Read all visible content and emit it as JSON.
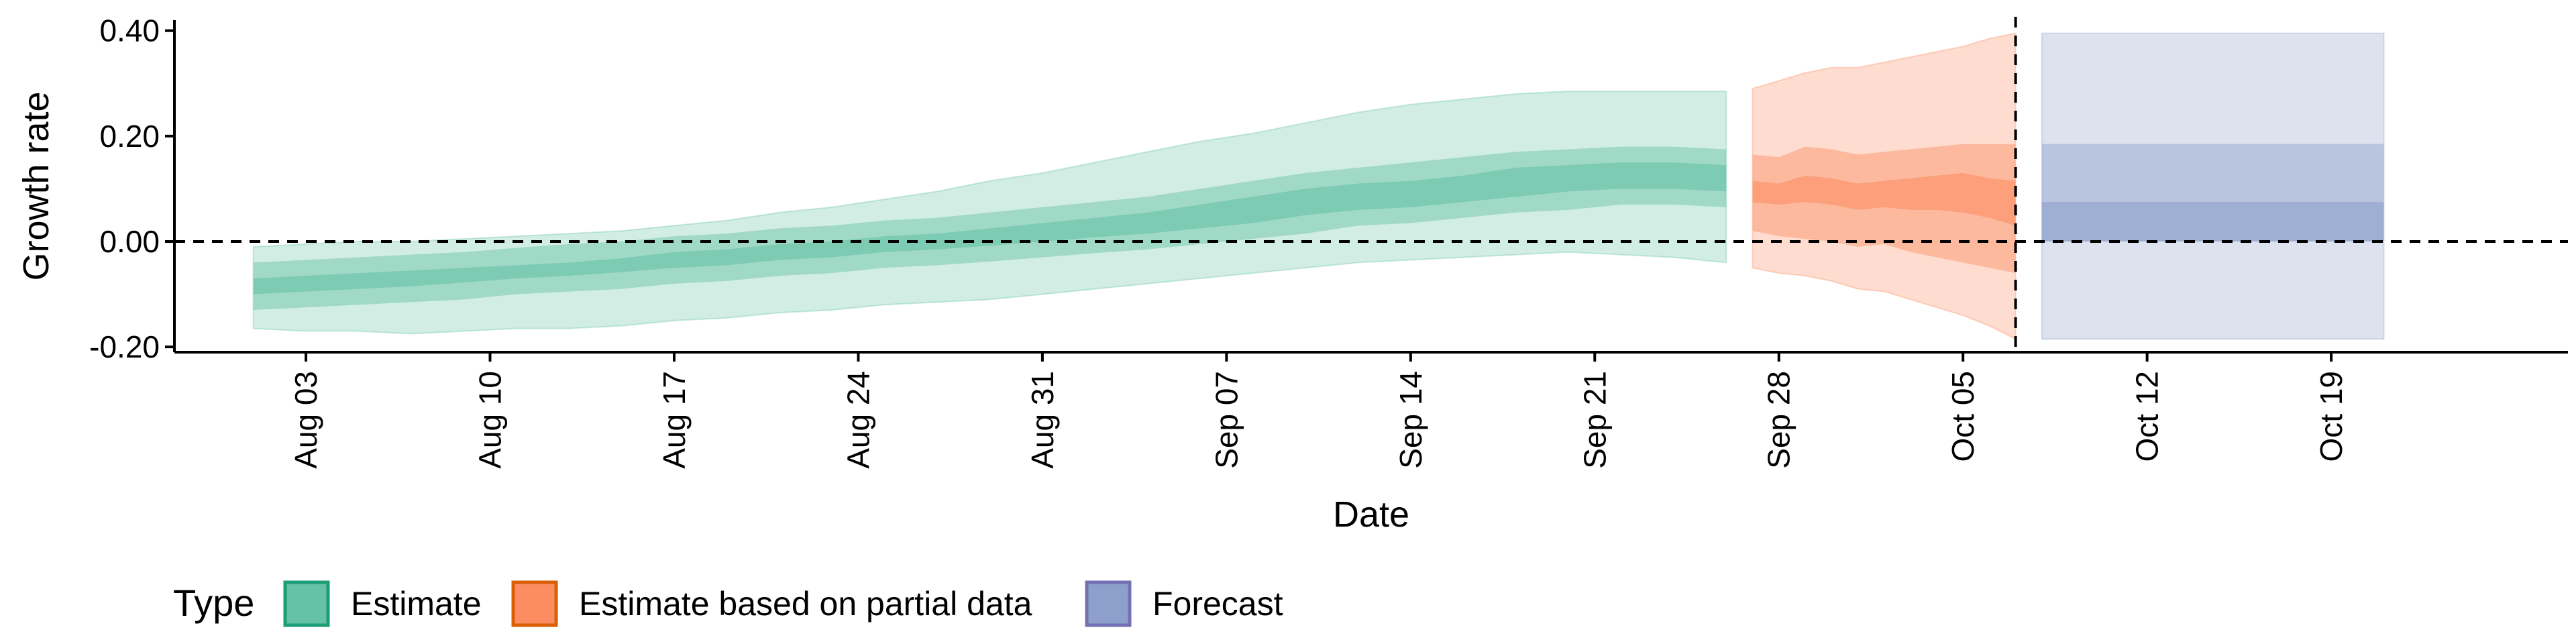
{
  "chart_data": {
    "type": "area",
    "xlabel": "Date",
    "ylabel": "Growth rate",
    "ylim": [
      -0.21,
      0.42
    ],
    "xlim": [
      "2020-07-29",
      "2020-10-28"
    ],
    "yticks": [
      -0.2,
      0.0,
      0.2,
      0.4
    ],
    "ytick_labels": [
      "-0.20",
      "0.00",
      "0.20",
      "0.40"
    ],
    "xticks": [
      "2020-08-03",
      "2020-08-10",
      "2020-08-17",
      "2020-08-24",
      "2020-08-31",
      "2020-09-07",
      "2020-09-14",
      "2020-09-21",
      "2020-09-28",
      "2020-10-05",
      "2020-10-12",
      "2020-10-19"
    ],
    "xtick_labels": [
      "Aug 03",
      "Aug 10",
      "Aug 17",
      "Aug 24",
      "Aug 31",
      "Sep 07",
      "Sep 14",
      "Sep 21",
      "Sep 28",
      "Oct 05",
      "Oct 12",
      "Oct 19"
    ],
    "reference_lines": {
      "horizontal_y": 0.0,
      "vertical_date": "2020-10-07"
    },
    "grid": false,
    "legend": {
      "title": "Type",
      "position": "bottom-left",
      "entries": [
        {
          "label": "Estimate",
          "fill": "#66c2a5",
          "stroke": "#1b9e77"
        },
        {
          "label": "Estimate based on partial data",
          "fill": "#fc8d62",
          "stroke": "#d95f02"
        },
        {
          "label": "Forecast",
          "fill": "#8da0cb",
          "stroke": "#7570b3"
        }
      ]
    },
    "series": [
      {
        "type": "Estimate",
        "color": "#66c2a5",
        "x": [
          "2020-08-01",
          "2020-08-03",
          "2020-08-05",
          "2020-08-07",
          "2020-08-09",
          "2020-08-11",
          "2020-08-13",
          "2020-08-15",
          "2020-08-17",
          "2020-08-19",
          "2020-08-21",
          "2020-08-23",
          "2020-08-25",
          "2020-08-27",
          "2020-08-29",
          "2020-08-31",
          "2020-09-02",
          "2020-09-04",
          "2020-09-06",
          "2020-09-08",
          "2020-09-10",
          "2020-09-12",
          "2020-09-14",
          "2020-09-16",
          "2020-09-18",
          "2020-09-20",
          "2020-09-22",
          "2020-09-24",
          "2020-09-26"
        ],
        "median": [
          -0.085,
          -0.08,
          -0.075,
          -0.07,
          -0.065,
          -0.058,
          -0.052,
          -0.045,
          -0.035,
          -0.03,
          -0.02,
          -0.015,
          -0.005,
          0.0,
          0.01,
          0.02,
          0.025,
          0.035,
          0.05,
          0.065,
          0.08,
          0.085,
          0.09,
          0.1,
          0.115,
          0.12,
          0.125,
          0.125,
          0.12
        ],
        "lower_50": [
          -0.1,
          -0.095,
          -0.09,
          -0.085,
          -0.078,
          -0.07,
          -0.065,
          -0.058,
          -0.05,
          -0.045,
          -0.035,
          -0.03,
          -0.02,
          -0.015,
          -0.008,
          0.0,
          0.008,
          0.015,
          0.025,
          0.035,
          0.05,
          0.06,
          0.065,
          0.075,
          0.085,
          0.095,
          0.1,
          0.1,
          0.095
        ],
        "upper_50": [
          -0.07,
          -0.065,
          -0.06,
          -0.055,
          -0.05,
          -0.045,
          -0.04,
          -0.032,
          -0.02,
          -0.015,
          -0.005,
          0.0,
          0.01,
          0.015,
          0.025,
          0.035,
          0.045,
          0.055,
          0.07,
          0.085,
          0.1,
          0.11,
          0.115,
          0.125,
          0.14,
          0.145,
          0.15,
          0.15,
          0.145
        ],
        "lower_90": [
          -0.13,
          -0.125,
          -0.12,
          -0.115,
          -0.11,
          -0.1,
          -0.095,
          -0.09,
          -0.08,
          -0.075,
          -0.065,
          -0.06,
          -0.05,
          -0.045,
          -0.038,
          -0.03,
          -0.022,
          -0.015,
          -0.005,
          0.005,
          0.015,
          0.03,
          0.035,
          0.045,
          0.055,
          0.06,
          0.07,
          0.07,
          0.065
        ],
        "upper_90": [
          -0.04,
          -0.035,
          -0.03,
          -0.025,
          -0.02,
          -0.012,
          -0.005,
          0.0,
          0.01,
          0.015,
          0.025,
          0.03,
          0.04,
          0.045,
          0.055,
          0.065,
          0.075,
          0.085,
          0.1,
          0.115,
          0.13,
          0.14,
          0.15,
          0.16,
          0.17,
          0.175,
          0.18,
          0.18,
          0.175
        ],
        "lower_ci": [
          -0.165,
          -0.17,
          -0.17,
          -0.175,
          -0.17,
          -0.165,
          -0.165,
          -0.16,
          -0.15,
          -0.145,
          -0.135,
          -0.13,
          -0.12,
          -0.115,
          -0.11,
          -0.1,
          -0.09,
          -0.08,
          -0.07,
          -0.06,
          -0.05,
          -0.04,
          -0.035,
          -0.03,
          -0.025,
          -0.02,
          -0.025,
          -0.03,
          -0.04
        ],
        "upper_ci": [
          -0.01,
          -0.005,
          0.0,
          0.0,
          0.005,
          0.01,
          0.015,
          0.02,
          0.03,
          0.04,
          0.055,
          0.065,
          0.08,
          0.095,
          0.115,
          0.13,
          0.15,
          0.17,
          0.19,
          0.205,
          0.225,
          0.245,
          0.26,
          0.27,
          0.28,
          0.285,
          0.285,
          0.285,
          0.285
        ]
      },
      {
        "type": "Estimate based on partial data",
        "color": "#fc8d62",
        "x": [
          "2020-09-27",
          "2020-09-28",
          "2020-09-29",
          "2020-09-30",
          "2020-10-01",
          "2020-10-02",
          "2020-10-03",
          "2020-10-04",
          "2020-10-05",
          "2020-10-06",
          "2020-10-07"
        ],
        "median": [
          0.095,
          0.09,
          0.1,
          0.095,
          0.085,
          0.09,
          0.09,
          0.095,
          0.095,
          0.085,
          0.075
        ],
        "lower_50": [
          0.075,
          0.07,
          0.075,
          0.07,
          0.06,
          0.065,
          0.06,
          0.06,
          0.055,
          0.045,
          0.03
        ],
        "upper_50": [
          0.115,
          0.11,
          0.125,
          0.12,
          0.11,
          0.115,
          0.12,
          0.125,
          0.13,
          0.12,
          0.115
        ],
        "lower_90": [
          0.02,
          0.01,
          0.005,
          0.0,
          -0.01,
          -0.005,
          -0.02,
          -0.03,
          -0.04,
          -0.05,
          -0.06
        ],
        "upper_90": [
          0.165,
          0.16,
          0.18,
          0.175,
          0.165,
          0.17,
          0.175,
          0.18,
          0.185,
          0.185,
          0.185
        ],
        "lower_ci": [
          -0.05,
          -0.06,
          -0.065,
          -0.075,
          -0.09,
          -0.095,
          -0.11,
          -0.125,
          -0.14,
          -0.16,
          -0.185
        ],
        "upper_ci": [
          0.29,
          0.305,
          0.32,
          0.33,
          0.33,
          0.34,
          0.35,
          0.36,
          0.37,
          0.385,
          0.395
        ]
      },
      {
        "type": "Forecast",
        "color": "#8da0cb",
        "x": [
          "2020-10-08",
          "2020-10-21"
        ],
        "median": [
          0.0,
          0.0
        ],
        "lower_50": [
          0.0,
          0.0
        ],
        "upper_50": [
          0.075,
          0.075
        ],
        "lower_90": [
          0.0,
          0.0
        ],
        "upper_90": [
          0.185,
          0.185
        ],
        "lower_ci": [
          -0.185,
          -0.185
        ],
        "upper_ci": [
          0.395,
          0.395
        ]
      }
    ]
  }
}
